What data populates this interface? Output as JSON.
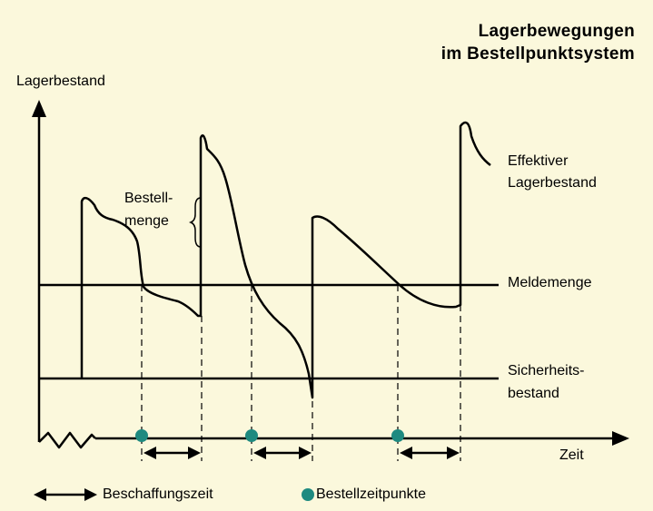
{
  "title": {
    "line1": "Lagerbewegungen",
    "line2": "im Bestellpunktsystem"
  },
  "axes": {
    "y_label": "Lagerbestand",
    "x_label": "Zeit"
  },
  "curve_labels": {
    "effective_line1": "Effektiver",
    "effective_line2": "Lagerbestand",
    "order_qty_line1": "Bestell-",
    "order_qty_line2": "menge"
  },
  "levels": {
    "reorder_level": "Meldemenge",
    "safety_stock_line1": "Sicherheits-",
    "safety_stock_line2": "bestand"
  },
  "legend": {
    "lead_time": "Beschaffungszeit",
    "order_points": "Bestellzeitpunkte"
  },
  "colors": {
    "background": "#fbf8dc",
    "ink": "#000000",
    "order_point": "#1e8a80"
  }
}
